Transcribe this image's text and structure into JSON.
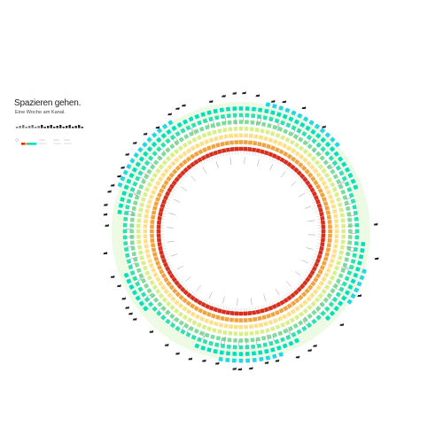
{
  "title": "Spazieren gehen.",
  "subtitle": "Eine Woche am Kanal.",
  "chart_data": {
    "type": "radial-heatmap",
    "title": "Spazieren gehen.",
    "subtitle": "Eine Woche am Kanal.",
    "rings": 8,
    "sectors": 120,
    "ring_colors": [
      "#d7301f",
      "#f1a340",
      "#fee08b",
      "#d9ef8b",
      "#7fdc9a",
      "#2fe0b0",
      "#00e0c0",
      "#22d7e6"
    ],
    "level_scale": [
      0,
      1,
      2,
      3,
      4,
      5,
      6,
      7,
      8
    ],
    "outer_band_color": "#eefbe4",
    "profile_levels": [
      7,
      7,
      7,
      7,
      8,
      8,
      8,
      8,
      8,
      8,
      8,
      8,
      8,
      8,
      8,
      8,
      8,
      7,
      7,
      7,
      7,
      7,
      7,
      7,
      6,
      6,
      6,
      6,
      6,
      6,
      6,
      6,
      7,
      7,
      7,
      7,
      8,
      8,
      8,
      8,
      8,
      8,
      7,
      7,
      7,
      7,
      6,
      6,
      6,
      6,
      6,
      7,
      7,
      7,
      8,
      8,
      8,
      8,
      8,
      8,
      8,
      8,
      8,
      8,
      7,
      7,
      7,
      7,
      6,
      6,
      6,
      6,
      6,
      6,
      6,
      6,
      6,
      7,
      7,
      7,
      7,
      7,
      7,
      7,
      6,
      6,
      6,
      6,
      6,
      6,
      6,
      6,
      6,
      7,
      7,
      7,
      7,
      8,
      8,
      8,
      8,
      8,
      8,
      8,
      8,
      8,
      8,
      8,
      8,
      8,
      7,
      7,
      7,
      7,
      7,
      7,
      7,
      7,
      7,
      7
    ],
    "event_icon_count": 48
  }
}
